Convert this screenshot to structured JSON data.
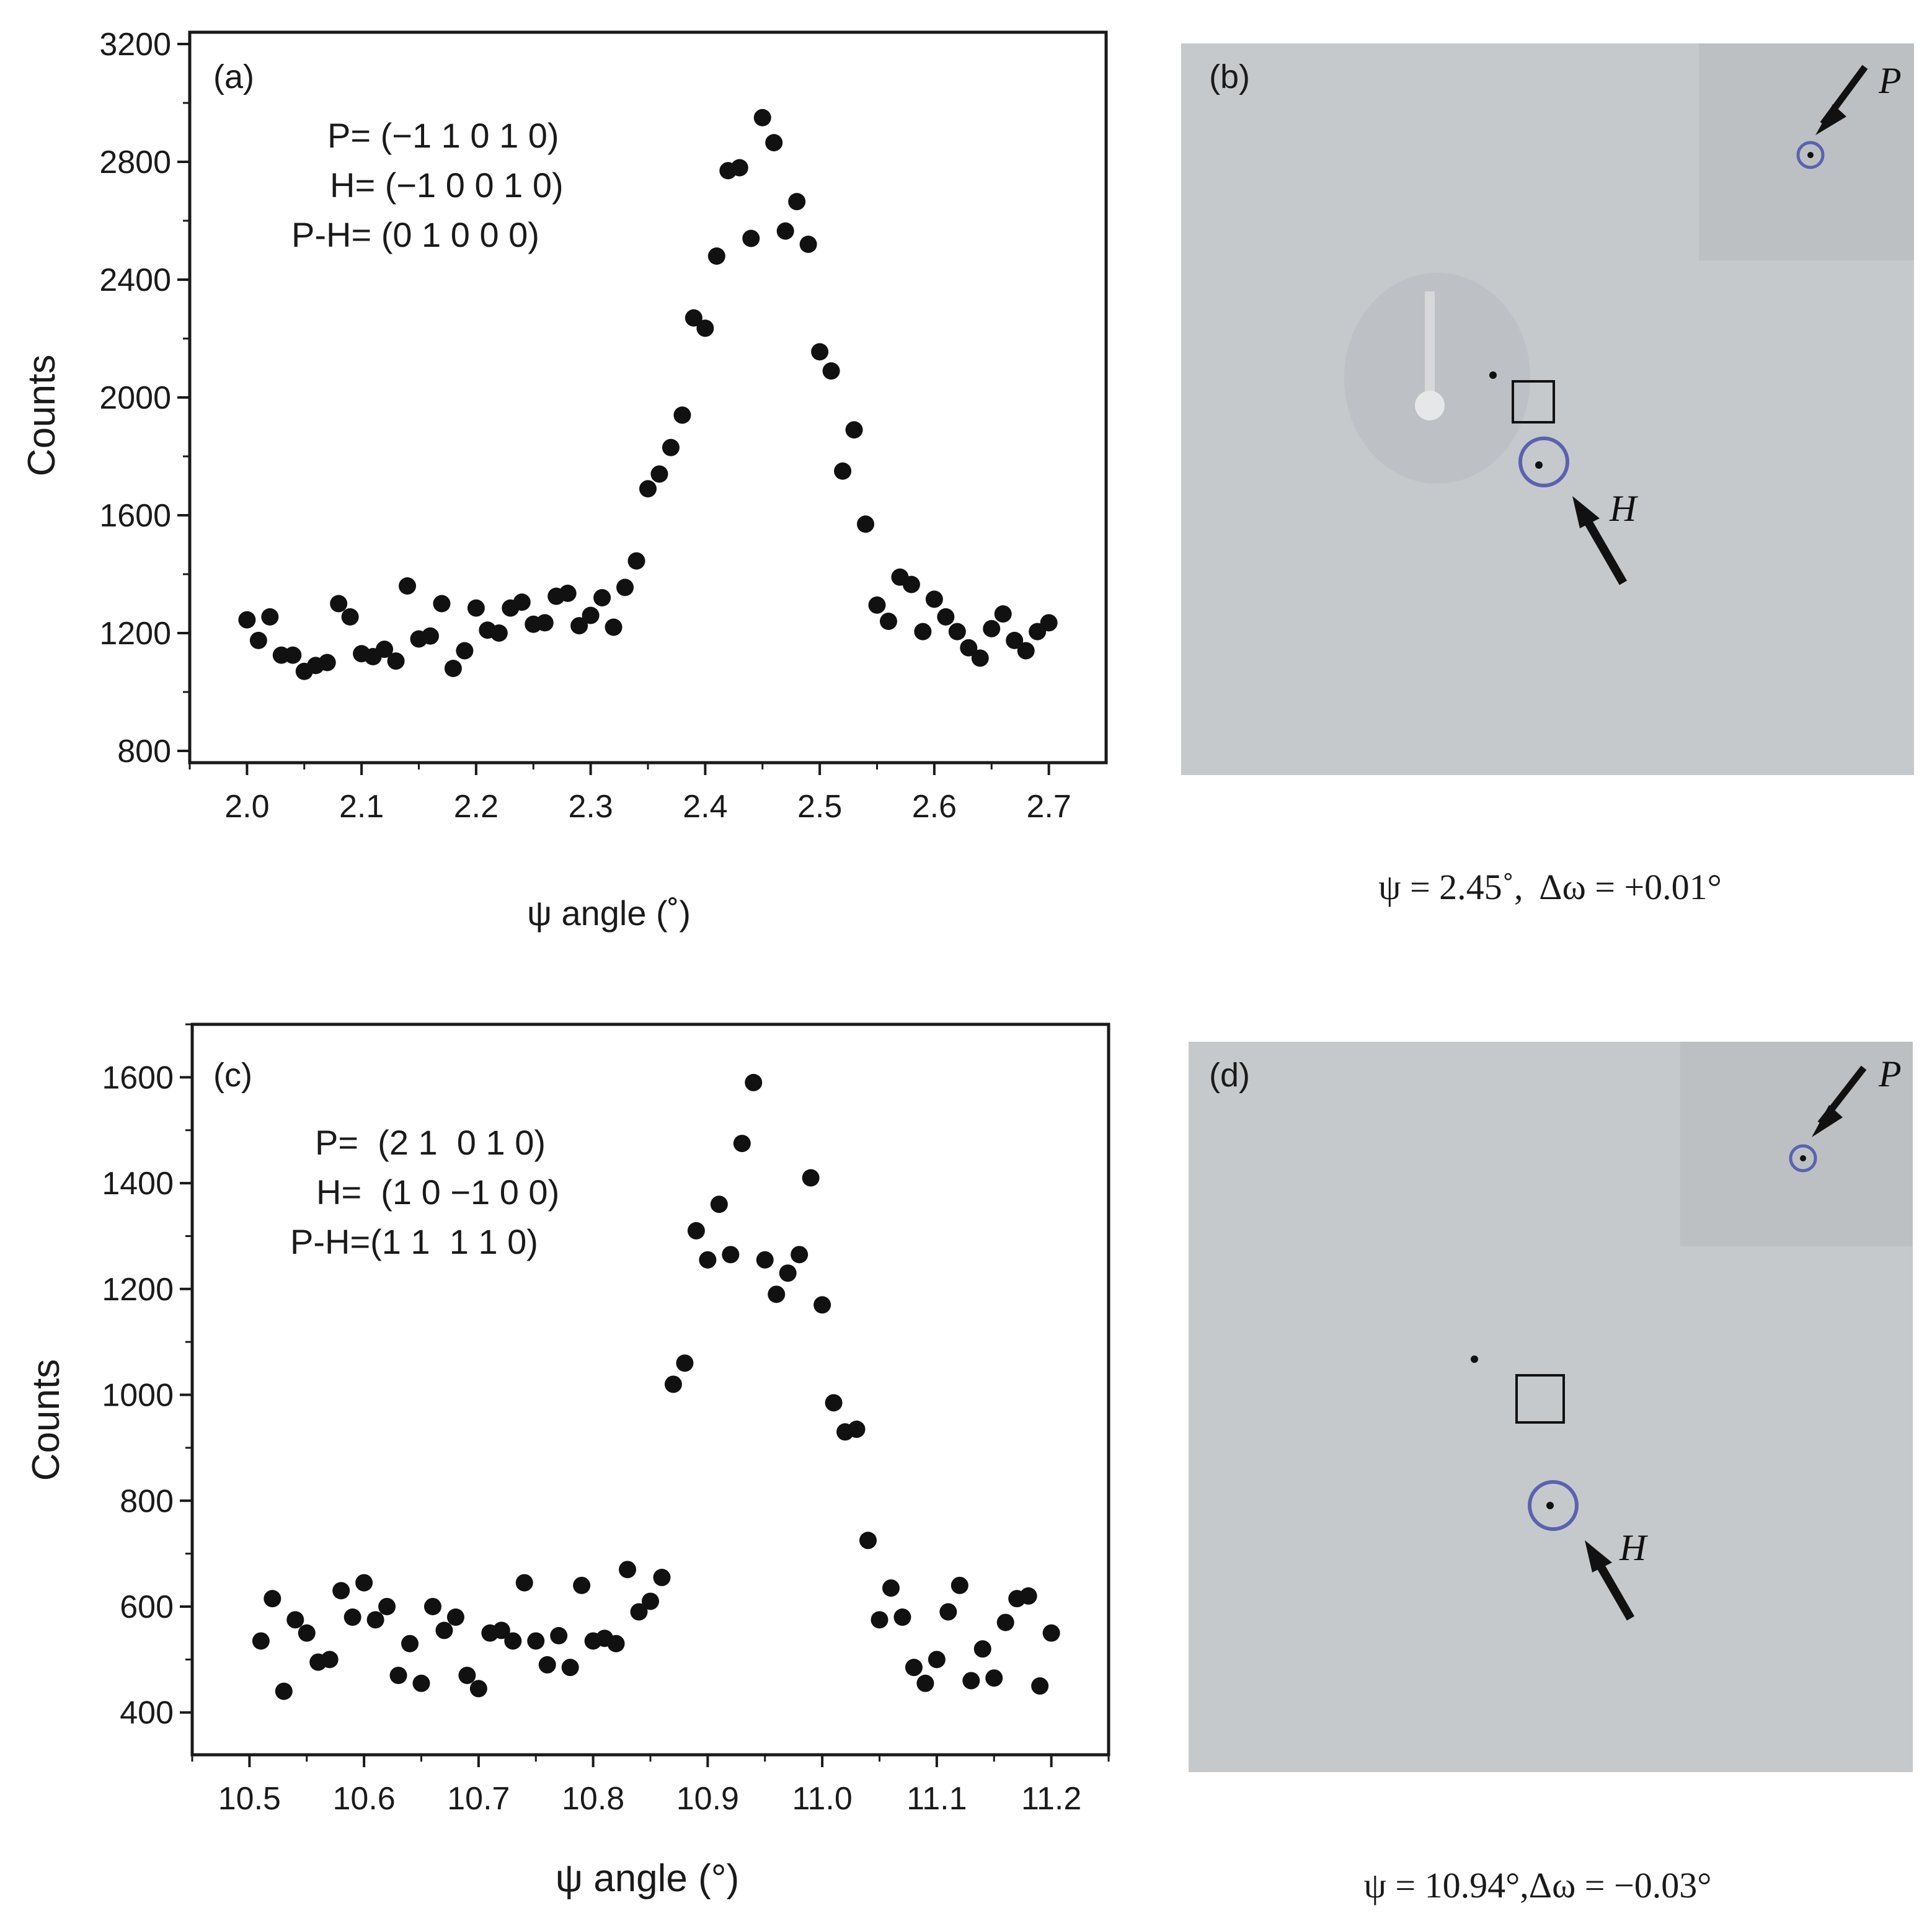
{
  "chart_data": [
    {
      "type": "scatter",
      "panel_label": "(a)",
      "xlabel": "ψ angle (˚)",
      "ylabel": "Counts",
      "xlim": [
        1.95,
        2.75
      ],
      "ylim": [
        760,
        3240
      ],
      "x_ticks": [
        "2.0",
        "2.1",
        "2.2",
        "2.3",
        "2.4",
        "2.5",
        "2.6",
        "2.7"
      ],
      "x_tick_values": [
        2.0,
        2.1,
        2.2,
        2.3,
        2.4,
        2.5,
        2.6,
        2.7
      ],
      "y_ticks": [
        "800",
        "1200",
        "1600",
        "2000",
        "2400",
        "2800",
        "3200"
      ],
      "y_tick_values": [
        800,
        1200,
        1600,
        2000,
        2400,
        2800,
        3200
      ],
      "annotations": [
        "P= (−1 1 0 1 0)",
        "H= (−1 0 0 1 0)",
        "P-H= (0 1 0 0 0)"
      ],
      "points": [
        [
          2.0,
          1245
        ],
        [
          2.01,
          1175
        ],
        [
          2.02,
          1255
        ],
        [
          2.03,
          1125
        ],
        [
          2.04,
          1125
        ],
        [
          2.05,
          1070
        ],
        [
          2.06,
          1090
        ],
        [
          2.07,
          1100
        ],
        [
          2.08,
          1300
        ],
        [
          2.09,
          1255
        ],
        [
          2.1,
          1130
        ],
        [
          2.11,
          1120
        ],
        [
          2.12,
          1145
        ],
        [
          2.13,
          1105
        ],
        [
          2.14,
          1360
        ],
        [
          2.15,
          1180
        ],
        [
          2.16,
          1190
        ],
        [
          2.17,
          1300
        ],
        [
          2.18,
          1080
        ],
        [
          2.19,
          1140
        ],
        [
          2.2,
          1285
        ],
        [
          2.21,
          1210
        ],
        [
          2.22,
          1200
        ],
        [
          2.23,
          1285
        ],
        [
          2.24,
          1305
        ],
        [
          2.25,
          1230
        ],
        [
          2.26,
          1235
        ],
        [
          2.27,
          1325
        ],
        [
          2.28,
          1335
        ],
        [
          2.29,
          1225
        ],
        [
          2.3,
          1260
        ],
        [
          2.31,
          1320
        ],
        [
          2.32,
          1220
        ],
        [
          2.33,
          1355
        ],
        [
          2.34,
          1445
        ],
        [
          2.35,
          1690
        ],
        [
          2.36,
          1740
        ],
        [
          2.37,
          1830
        ],
        [
          2.38,
          1940
        ],
        [
          2.39,
          2270
        ],
        [
          2.4,
          2235
        ],
        [
          2.41,
          2480
        ],
        [
          2.42,
          2770
        ],
        [
          2.43,
          2780
        ],
        [
          2.44,
          2540
        ],
        [
          2.45,
          2950
        ],
        [
          2.46,
          2865
        ],
        [
          2.47,
          2565
        ],
        [
          2.48,
          2665
        ],
        [
          2.49,
          2520
        ],
        [
          2.5,
          2155
        ],
        [
          2.51,
          2090
        ],
        [
          2.52,
          1750
        ],
        [
          2.53,
          1890
        ],
        [
          2.54,
          1570
        ],
        [
          2.55,
          1295
        ],
        [
          2.56,
          1240
        ],
        [
          2.57,
          1390
        ],
        [
          2.58,
          1365
        ],
        [
          2.59,
          1205
        ],
        [
          2.6,
          1315
        ],
        [
          2.61,
          1255
        ],
        [
          2.62,
          1205
        ],
        [
          2.63,
          1150
        ],
        [
          2.64,
          1115
        ],
        [
          2.65,
          1215
        ],
        [
          2.66,
          1265
        ],
        [
          2.67,
          1175
        ],
        [
          2.68,
          1140
        ],
        [
          2.69,
          1205
        ],
        [
          2.7,
          1235
        ]
      ]
    },
    {
      "type": "scatter",
      "panel_label": "(c)",
      "xlabel": "ψ angle (°)",
      "ylabel": "Counts",
      "xlim": [
        10.45,
        11.25
      ],
      "ylim": [
        320,
        1700
      ],
      "x_ticks": [
        "10.5",
        "10.6",
        "10.7",
        "10.8",
        "10.9",
        "11.0",
        "11.1",
        "11.2"
      ],
      "x_tick_values": [
        10.5,
        10.6,
        10.7,
        10.8,
        10.9,
        11.0,
        11.1,
        11.2
      ],
      "y_ticks": [
        "400",
        "600",
        "800",
        "1000",
        "1200",
        "1400",
        "1600"
      ],
      "y_tick_values": [
        400,
        600,
        800,
        1000,
        1200,
        1400,
        1600
      ],
      "annotations": [
        "P=  (2 1  0 1 0)",
        "H=  (1 0 −1 0 0)",
        "P-H=(1 1  1 1 0)"
      ],
      "points": [
        [
          10.51,
          535
        ],
        [
          10.52,
          615
        ],
        [
          10.53,
          440
        ],
        [
          10.54,
          575
        ],
        [
          10.55,
          550
        ],
        [
          10.56,
          495
        ],
        [
          10.57,
          500
        ],
        [
          10.58,
          630
        ],
        [
          10.59,
          580
        ],
        [
          10.6,
          645
        ],
        [
          10.61,
          575
        ],
        [
          10.62,
          600
        ],
        [
          10.63,
          470
        ],
        [
          10.64,
          530
        ],
        [
          10.65,
          455
        ],
        [
          10.66,
          600
        ],
        [
          10.67,
          555
        ],
        [
          10.68,
          580
        ],
        [
          10.69,
          470
        ],
        [
          10.7,
          445
        ],
        [
          10.71,
          550
        ],
        [
          10.72,
          555
        ],
        [
          10.73,
          535
        ],
        [
          10.74,
          645
        ],
        [
          10.75,
          535
        ],
        [
          10.76,
          490
        ],
        [
          10.77,
          545
        ],
        [
          10.78,
          485
        ],
        [
          10.79,
          640
        ],
        [
          10.8,
          535
        ],
        [
          10.81,
          540
        ],
        [
          10.82,
          530
        ],
        [
          10.83,
          670
        ],
        [
          10.84,
          590
        ],
        [
          10.85,
          610
        ],
        [
          10.86,
          655
        ],
        [
          10.87,
          1020
        ],
        [
          10.88,
          1060
        ],
        [
          10.89,
          1310
        ],
        [
          10.9,
          1255
        ],
        [
          10.91,
          1360
        ],
        [
          10.92,
          1265
        ],
        [
          10.93,
          1475
        ],
        [
          10.94,
          1590
        ],
        [
          10.95,
          1255
        ],
        [
          10.96,
          1190
        ],
        [
          10.97,
          1230
        ],
        [
          10.98,
          1265
        ],
        [
          10.99,
          1410
        ],
        [
          11.0,
          1170
        ],
        [
          11.01,
          985
        ],
        [
          11.02,
          930
        ],
        [
          11.03,
          935
        ],
        [
          11.04,
          725
        ],
        [
          11.05,
          575
        ],
        [
          11.06,
          635
        ],
        [
          11.07,
          580
        ],
        [
          11.08,
          485
        ],
        [
          11.09,
          455
        ],
        [
          11.1,
          500
        ],
        [
          11.11,
          590
        ],
        [
          11.12,
          640
        ],
        [
          11.13,
          460
        ],
        [
          11.14,
          520
        ],
        [
          11.15,
          465
        ],
        [
          11.16,
          570
        ],
        [
          11.17,
          615
        ],
        [
          11.18,
          620
        ],
        [
          11.19,
          450
        ],
        [
          11.2,
          550
        ]
      ]
    }
  ],
  "panel_b": {
    "label": "(b)",
    "marker_p": "P",
    "marker_h": "H",
    "caption": "ψ = 2.45˚,  Δω = +0.01°"
  },
  "panel_d": {
    "label": "(d)",
    "marker_p": "P",
    "marker_h": "H",
    "caption": "ψ = 10.94°,Δω = −0.03°"
  },
  "colors": {
    "marker": "#111111",
    "axis": "#1a1a1a",
    "detector_bg": "#c6c9cc",
    "inset_bg": "#bdc0c3",
    "circle": "#5a62b0"
  }
}
